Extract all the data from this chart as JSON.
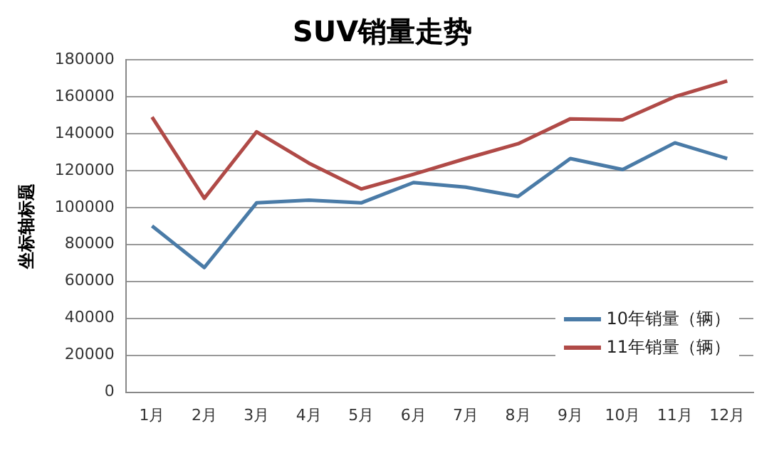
{
  "chart_data": {
    "type": "line",
    "title": "SUV销量走势",
    "ylabel": "坐标轴标题",
    "categories": [
      "1月",
      "2月",
      "3月",
      "4月",
      "5月",
      "6月",
      "7月",
      "8月",
      "9月",
      "10月",
      "11月",
      "12月"
    ],
    "series": [
      {
        "name": "10年销量（辆）",
        "color": "#4a7ba7",
        "values": [
          90000,
          67500,
          102500,
          104000,
          102500,
          113500,
          111000,
          106000,
          126500,
          120500,
          135000,
          126500
        ]
      },
      {
        "name": "11年销量（辆）",
        "color": "#b04a47",
        "values": [
          149000,
          105000,
          141000,
          124000,
          110000,
          118000,
          126500,
          134500,
          148000,
          147500,
          160000,
          168500
        ]
      }
    ],
    "ylim": [
      0,
      180000
    ],
    "yticks": [
      0,
      20000,
      40000,
      60000,
      80000,
      100000,
      120000,
      140000,
      160000,
      180000
    ],
    "grid": "y",
    "legend": "bottom right",
    "marker": "none",
    "line_style": "solid"
  }
}
